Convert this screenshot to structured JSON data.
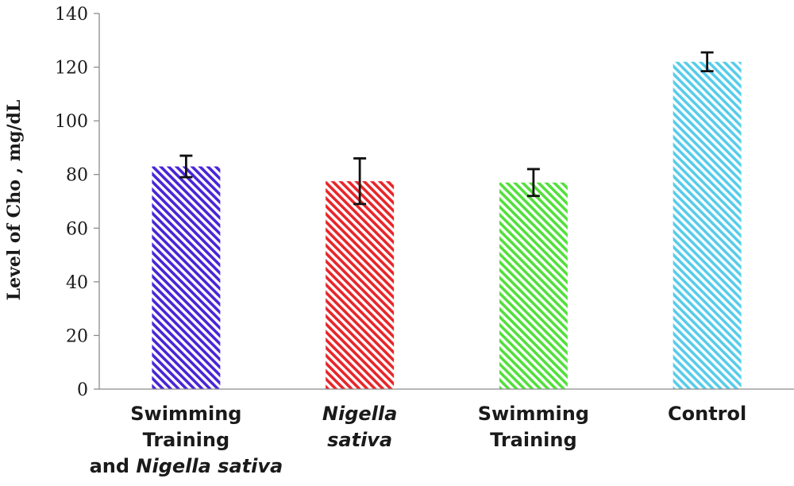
{
  "chart_data": {
    "type": "bar",
    "title": "",
    "xlabel": "",
    "ylabel": "Level of Cho , mg/dL",
    "ylim": [
      0,
      140
    ],
    "yticks": [
      0,
      20,
      40,
      60,
      80,
      100,
      120,
      140
    ],
    "grid": false,
    "categories": [
      {
        "lines": [
          [
            {
              "text": "Swimming",
              "italic": false
            }
          ],
          [
            {
              "text": "Training",
              "italic": false
            }
          ],
          [
            {
              "text": "and ",
              "italic": false
            },
            {
              "text": "Nigella sativa",
              "italic": true
            }
          ]
        ]
      },
      {
        "lines": [
          [
            {
              "text": "Nigella",
              "italic": true
            }
          ],
          [
            {
              "text": "sativa",
              "italic": true
            }
          ]
        ]
      },
      {
        "lines": [
          [
            {
              "text": "Swimming",
              "italic": false
            }
          ],
          [
            {
              "text": "Training",
              "italic": false
            }
          ]
        ]
      },
      {
        "lines": [
          [
            {
              "text": "Control",
              "italic": false
            }
          ]
        ]
      }
    ],
    "values": [
      83,
      77.5,
      77,
      122
    ],
    "errors": [
      4,
      8.5,
      5,
      3.5
    ],
    "colors": [
      "#4a25d6",
      "#e8262a",
      "#53e03c",
      "#57ccea"
    ]
  }
}
